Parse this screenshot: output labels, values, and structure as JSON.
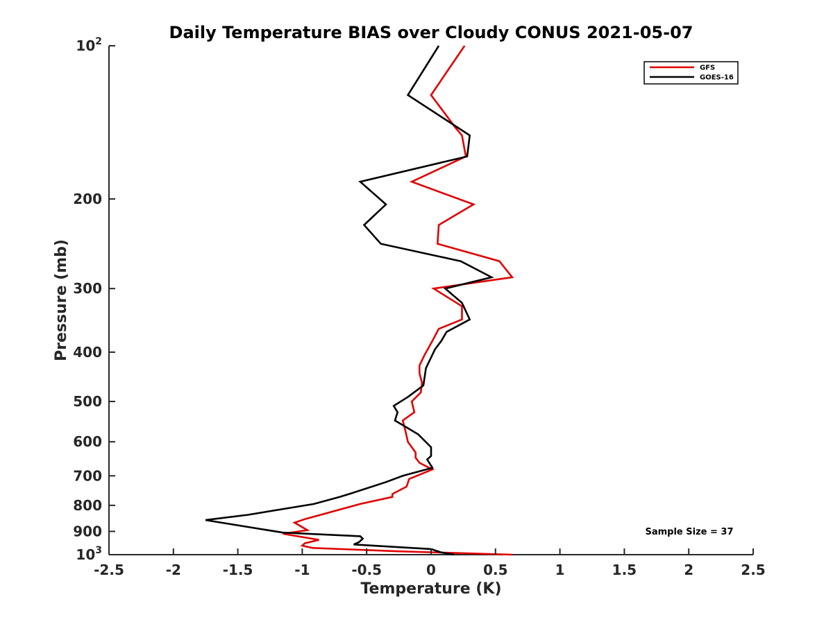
{
  "chart_data": {
    "type": "line",
    "title": "Daily Temperature BIAS over Cloudy CONUS 2021-05-07",
    "xlabel": "Temperature (K)",
    "ylabel": "Pressure (mb)",
    "xlim": [
      -2.5,
      2.5
    ],
    "ylim": [
      100,
      1000
    ],
    "y_scale": "log",
    "y_reversed": true,
    "grid": false,
    "legend_position": "top-right",
    "x_ticks": [
      -2.5,
      -2,
      -1.5,
      -1,
      -0.5,
      0,
      0.5,
      1,
      1.5,
      2,
      2.5
    ],
    "x_tick_labels": [
      "-2.5",
      "-2",
      "-1.5",
      "-1",
      "-0.5",
      "0",
      "0.5",
      "1",
      "1.5",
      "2",
      "2.5"
    ],
    "y_ticks": [
      100,
      200,
      300,
      400,
      500,
      600,
      700,
      800,
      900,
      1000
    ],
    "y_tick_labels": [
      {
        "base": "10",
        "exp": "2"
      },
      {
        "base": "200",
        "exp": ""
      },
      {
        "base": "300",
        "exp": ""
      },
      {
        "base": "400",
        "exp": ""
      },
      {
        "base": "500",
        "exp": ""
      },
      {
        "base": "600",
        "exp": ""
      },
      {
        "base": "700",
        "exp": ""
      },
      {
        "base": "800",
        "exp": ""
      },
      {
        "base": "900",
        "exp": ""
      },
      {
        "base": "10",
        "exp": "3"
      }
    ],
    "annotation": "Sample Size = 37",
    "series": [
      {
        "name": "GFS",
        "color": "#e00000",
        "points": [
          [
            0.26,
            100
          ],
          [
            0.0,
            125
          ],
          [
            0.19,
            145
          ],
          [
            0.24,
            150
          ],
          [
            0.27,
            165
          ],
          [
            -0.15,
            185
          ],
          [
            0.33,
            205
          ],
          [
            0.06,
            225
          ],
          [
            0.05,
            245
          ],
          [
            0.53,
            265
          ],
          [
            0.63,
            285
          ],
          [
            0.02,
            300
          ],
          [
            0.24,
            325
          ],
          [
            0.24,
            345
          ],
          [
            0.06,
            360
          ],
          [
            0.01,
            380
          ],
          [
            -0.05,
            405
          ],
          [
            -0.09,
            425
          ],
          [
            -0.09,
            440
          ],
          [
            -0.07,
            460
          ],
          [
            -0.08,
            480
          ],
          [
            -0.15,
            500
          ],
          [
            -0.13,
            525
          ],
          [
            -0.22,
            545
          ],
          [
            -0.2,
            570
          ],
          [
            -0.18,
            600
          ],
          [
            -0.12,
            630
          ],
          [
            -0.12,
            645
          ],
          [
            -0.09,
            660
          ],
          [
            0.01,
            680
          ],
          [
            -0.17,
            710
          ],
          [
            -0.19,
            735
          ],
          [
            -0.3,
            760
          ],
          [
            -0.3,
            770
          ],
          [
            -0.55,
            795
          ],
          [
            -0.97,
            850
          ],
          [
            -1.06,
            865
          ],
          [
            -0.96,
            895
          ],
          [
            -1.15,
            910
          ],
          [
            -0.87,
            935
          ],
          [
            -0.98,
            950
          ],
          [
            -1.0,
            960
          ],
          [
            -0.92,
            970
          ],
          [
            -0.25,
            985
          ],
          [
            0.63,
            1000
          ]
        ]
      },
      {
        "name": "GOES-16",
        "color": "#000000",
        "points": [
          [
            0.06,
            100
          ],
          [
            -0.18,
            125
          ],
          [
            0.3,
            150
          ],
          [
            0.28,
            165
          ],
          [
            -0.55,
            185
          ],
          [
            -0.35,
            205
          ],
          [
            -0.52,
            225
          ],
          [
            -0.39,
            245
          ],
          [
            0.23,
            265
          ],
          [
            0.47,
            285
          ],
          [
            0.11,
            300
          ],
          [
            0.24,
            320
          ],
          [
            0.3,
            345
          ],
          [
            0.12,
            365
          ],
          [
            0.08,
            380
          ],
          [
            0.03,
            395
          ],
          [
            -0.04,
            430
          ],
          [
            -0.06,
            465
          ],
          [
            -0.18,
            490
          ],
          [
            -0.29,
            510
          ],
          [
            -0.26,
            525
          ],
          [
            -0.28,
            545
          ],
          [
            -0.1,
            580
          ],
          [
            0.0,
            615
          ],
          [
            0.0,
            640
          ],
          [
            -0.03,
            650
          ],
          [
            0.01,
            675
          ],
          [
            -0.22,
            700
          ],
          [
            -0.35,
            720
          ],
          [
            -0.6,
            755
          ],
          [
            -0.71,
            770
          ],
          [
            -0.91,
            795
          ],
          [
            -1.42,
            835
          ],
          [
            -1.75,
            855
          ],
          [
            -1.15,
            905
          ],
          [
            -0.55,
            920
          ],
          [
            -0.53,
            930
          ],
          [
            -0.56,
            945
          ],
          [
            -0.6,
            955
          ],
          [
            0.0,
            975
          ],
          [
            0.08,
            990
          ],
          [
            0.18,
            1000
          ]
        ]
      }
    ]
  }
}
